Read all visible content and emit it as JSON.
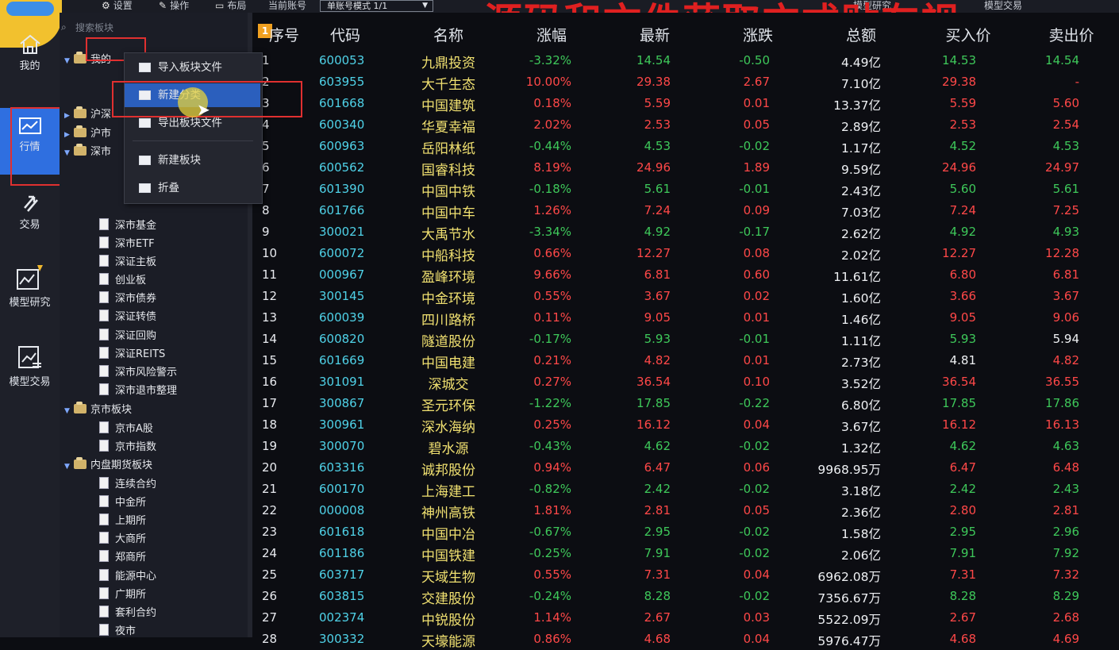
{
  "topbar": {
    "items": [
      "设置",
      "操作",
      "布局",
      "当前账号"
    ],
    "account_mode": "单账号模式 1/1",
    "right_labels": [
      "模型研究",
      "模型交易"
    ],
    "overlay_text": "源码和文件获取方式贴在视"
  },
  "nav": [
    {
      "label": "我的",
      "icon": "home-icon"
    },
    {
      "label": "行情",
      "icon": "chart-icon"
    },
    {
      "label": "交易",
      "icon": "exchange-icon"
    },
    {
      "label": "模型研究",
      "icon": "research-icon"
    },
    {
      "label": "模型交易",
      "icon": "model-trade-icon"
    }
  ],
  "sidebar": {
    "search_placeholder": "搜索板块",
    "tree": [
      {
        "label": "我的",
        "level": 0,
        "type": "folder",
        "expanded": true
      },
      {
        "label": "沪深",
        "level": 0,
        "type": "folder",
        "expanded": false
      },
      {
        "label": "沪市",
        "level": 0,
        "type": "folder",
        "expanded": false
      },
      {
        "label": "深市",
        "level": 0,
        "type": "folder",
        "expanded": true
      },
      {
        "label": "深市基金",
        "level": 1,
        "type": "doc"
      },
      {
        "label": "深市ETF",
        "level": 1,
        "type": "doc"
      },
      {
        "label": "深证主板",
        "level": 1,
        "type": "doc"
      },
      {
        "label": "创业板",
        "level": 1,
        "type": "doc"
      },
      {
        "label": "深市债券",
        "level": 1,
        "type": "doc"
      },
      {
        "label": "深证转债",
        "level": 1,
        "type": "doc"
      },
      {
        "label": "深证回购",
        "level": 1,
        "type": "doc"
      },
      {
        "label": "深证REITS",
        "level": 1,
        "type": "doc"
      },
      {
        "label": "深市风险警示",
        "level": 1,
        "type": "doc"
      },
      {
        "label": "深市退市整理",
        "level": 1,
        "type": "doc"
      },
      {
        "label": "京市板块",
        "level": 0,
        "type": "folder",
        "expanded": true
      },
      {
        "label": "京市A股",
        "level": 1,
        "type": "doc"
      },
      {
        "label": "京市指数",
        "level": 1,
        "type": "doc"
      },
      {
        "label": "内盘期货板块",
        "level": 0,
        "type": "folder",
        "expanded": true
      },
      {
        "label": "连续合约",
        "level": 1,
        "type": "doc"
      },
      {
        "label": "中金所",
        "level": 1,
        "type": "doc"
      },
      {
        "label": "上期所",
        "level": 1,
        "type": "doc"
      },
      {
        "label": "大商所",
        "level": 1,
        "type": "doc"
      },
      {
        "label": "郑商所",
        "level": 1,
        "type": "doc"
      },
      {
        "label": "能源中心",
        "level": 1,
        "type": "doc"
      },
      {
        "label": "广期所",
        "level": 1,
        "type": "doc"
      },
      {
        "label": "套利合约",
        "level": 1,
        "type": "doc"
      },
      {
        "label": "夜市",
        "level": 1,
        "type": "doc"
      }
    ]
  },
  "context_menu": {
    "items": [
      "导入板块文件",
      "新建分类",
      "导出板块文件",
      "新建板块",
      "折叠"
    ],
    "highlighted": "新建分类"
  },
  "table": {
    "badge": "1",
    "headers": [
      "序号",
      "代码",
      "名称",
      "涨幅",
      "最新",
      "涨跌",
      "总额",
      "买入价",
      "卖出价"
    ],
    "rows": [
      [
        "1",
        "600053",
        "九鼎投资",
        "-3.32%",
        "14.54",
        "-0.50",
        "4.49亿",
        "14.53",
        "14.54"
      ],
      [
        "2",
        "603955",
        "大千生态",
        "10.00%",
        "29.38",
        "2.67",
        "7.10亿",
        "29.38",
        "-"
      ],
      [
        "3",
        "601668",
        "中国建筑",
        "0.18%",
        "5.59",
        "0.01",
        "13.37亿",
        "5.59",
        "5.60"
      ],
      [
        "4",
        "600340",
        "华夏幸福",
        "2.02%",
        "2.53",
        "0.05",
        "2.89亿",
        "2.53",
        "2.54"
      ],
      [
        "5",
        "600963",
        "岳阳林纸",
        "-0.44%",
        "4.53",
        "-0.02",
        "1.17亿",
        "4.52",
        "4.53"
      ],
      [
        "6",
        "600562",
        "国睿科技",
        "8.19%",
        "24.96",
        "1.89",
        "9.59亿",
        "24.96",
        "24.97"
      ],
      [
        "7",
        "601390",
        "中国中铁",
        "-0.18%",
        "5.61",
        "-0.01",
        "2.43亿",
        "5.60",
        "5.61"
      ],
      [
        "8",
        "601766",
        "中国中车",
        "1.26%",
        "7.24",
        "0.09",
        "7.03亿",
        "7.24",
        "7.25"
      ],
      [
        "9",
        "300021",
        "大禹节水",
        "-3.34%",
        "4.92",
        "-0.17",
        "2.62亿",
        "4.92",
        "4.93"
      ],
      [
        "10",
        "600072",
        "中船科技",
        "0.66%",
        "12.27",
        "0.08",
        "2.02亿",
        "12.27",
        "12.28"
      ],
      [
        "11",
        "000967",
        "盈峰环境",
        "9.66%",
        "6.81",
        "0.60",
        "11.61亿",
        "6.80",
        "6.81"
      ],
      [
        "12",
        "300145",
        "中金环境",
        "0.55%",
        "3.67",
        "0.02",
        "1.60亿",
        "3.66",
        "3.67"
      ],
      [
        "13",
        "600039",
        "四川路桥",
        "0.11%",
        "9.05",
        "0.01",
        "1.46亿",
        "9.05",
        "9.06"
      ],
      [
        "14",
        "600820",
        "隧道股份",
        "-0.17%",
        "5.93",
        "-0.01",
        "1.11亿",
        "5.93",
        "5.94"
      ],
      [
        "15",
        "601669",
        "中国电建",
        "0.21%",
        "4.82",
        "0.01",
        "2.73亿",
        "4.81",
        "4.82"
      ],
      [
        "16",
        "301091",
        "深城交",
        "0.27%",
        "36.54",
        "0.10",
        "3.52亿",
        "36.54",
        "36.55"
      ],
      [
        "17",
        "300867",
        "圣元环保",
        "-1.22%",
        "17.85",
        "-0.22",
        "6.80亿",
        "17.85",
        "17.86"
      ],
      [
        "18",
        "300961",
        "深水海纳",
        "0.25%",
        "16.12",
        "0.04",
        "3.67亿",
        "16.12",
        "16.13"
      ],
      [
        "19",
        "300070",
        "碧水源",
        "-0.43%",
        "4.62",
        "-0.02",
        "1.32亿",
        "4.62",
        "4.63"
      ],
      [
        "20",
        "603316",
        "诚邦股份",
        "0.94%",
        "6.47",
        "0.06",
        "9968.95万",
        "6.47",
        "6.48"
      ],
      [
        "21",
        "600170",
        "上海建工",
        "-0.82%",
        "2.42",
        "-0.02",
        "3.18亿",
        "2.42",
        "2.43"
      ],
      [
        "22",
        "000008",
        "神州高铁",
        "1.81%",
        "2.81",
        "0.05",
        "2.36亿",
        "2.80",
        "2.81"
      ],
      [
        "23",
        "601618",
        "中国中冶",
        "-0.67%",
        "2.95",
        "-0.02",
        "1.58亿",
        "2.95",
        "2.96"
      ],
      [
        "24",
        "601186",
        "中国铁建",
        "-0.25%",
        "7.91",
        "-0.02",
        "2.06亿",
        "7.91",
        "7.92"
      ],
      [
        "25",
        "603717",
        "天域生物",
        "0.55%",
        "7.31",
        "0.04",
        "6962.08万",
        "7.31",
        "7.32"
      ],
      [
        "26",
        "603815",
        "交建股份",
        "-0.24%",
        "8.28",
        "-0.02",
        "7356.67万",
        "8.28",
        "8.29"
      ],
      [
        "27",
        "002374",
        "中锐股份",
        "1.14%",
        "2.67",
        "0.03",
        "5522.09万",
        "2.67",
        "2.68"
      ],
      [
        "28",
        "300332",
        "天壕能源",
        "0.86%",
        "4.68",
        "0.04",
        "5976.47万",
        "4.68",
        "4.69"
      ]
    ]
  },
  "colors": {
    "up": "#ff4848",
    "down": "#3ec85a",
    "flat": "#eef0f3",
    "accent": "#2f6fe0",
    "highlight_box": "#e03030"
  }
}
